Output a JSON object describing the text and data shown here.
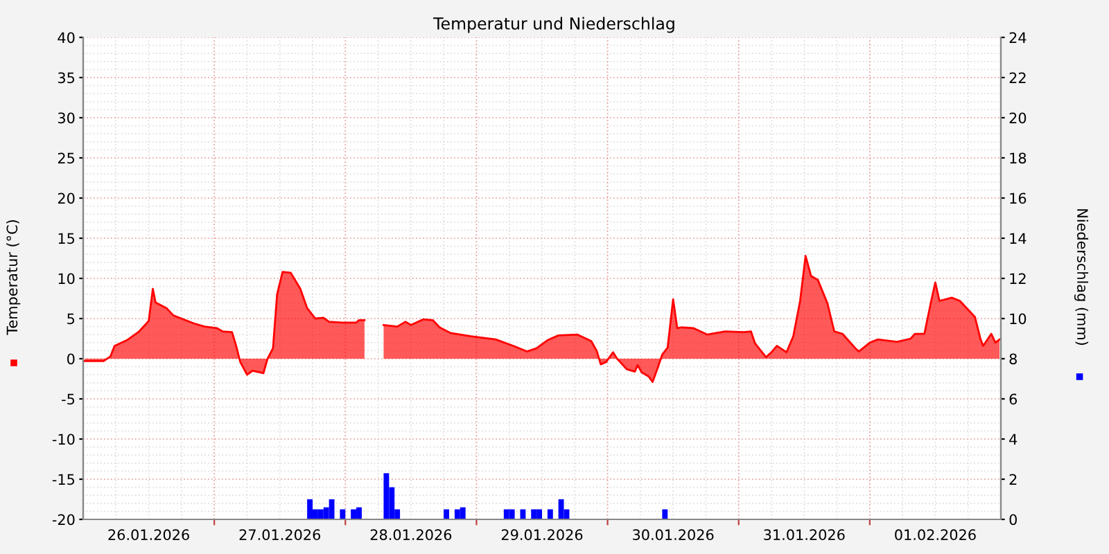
{
  "chart_data": {
    "type": "area",
    "title": "Temperatur und Niederschlag",
    "ylabel": "Temperatur (°C)",
    "y2label": "Niederschlag (mm)",
    "xlim": [
      "2026-01-26T00:00",
      "2026-02-02T00:00"
    ],
    "xticks": [
      {
        "value": "2026-01-26T12:00",
        "label": "26.01.2026"
      },
      {
        "value": "2026-01-27T00:00",
        "label": null
      },
      {
        "value": "2026-01-27T12:00",
        "label": "27.01.2026"
      },
      {
        "value": "2026-01-28T00:00",
        "label": null
      },
      {
        "value": "2026-01-28T12:00",
        "label": "28.01.2026"
      },
      {
        "value": "2026-01-29T00:00",
        "label": null
      },
      {
        "value": "2026-01-29T12:00",
        "label": "29.01.2026"
      },
      {
        "value": "2026-01-30T00:00",
        "label": null
      },
      {
        "value": "2026-01-30T12:00",
        "label": "30.01.2026"
      },
      {
        "value": "2026-01-31T00:00",
        "label": null
      },
      {
        "value": "2026-01-31T12:00",
        "label": "31.01.2026"
      },
      {
        "value": "2026-02-01T00:00",
        "label": null
      },
      {
        "value": "2026-02-01T12:00",
        "label": "01.02.2026"
      }
    ],
    "ylim": [
      -20,
      40
    ],
    "yticks": [
      -20,
      -15,
      -10,
      -5,
      0,
      5,
      10,
      15,
      20,
      25,
      30,
      35,
      40
    ],
    "y2lim": [
      0,
      24
    ],
    "y2ticks": [
      0,
      2,
      4,
      6,
      8,
      10,
      12,
      14,
      16,
      18,
      20,
      22,
      24
    ],
    "grid": true,
    "series": [
      {
        "color": "#ff0000",
        "x": [
          "2026-01-26T00:15",
          "2026-01-26T03:45",
          "2026-01-26T05:00",
          "2026-01-26T05:45",
          "2026-01-26T08:00",
          "2026-01-26T10:15",
          "2026-01-26T12:00",
          "2026-01-26T12:45",
          "2026-01-26T13:15",
          "2026-01-26T15:15",
          "2026-01-26T16:30",
          "2026-01-26T20:15",
          "2026-01-26T22:15",
          "2026-01-27T00:30",
          "2026-01-27T01:30",
          "2026-01-27T03:15",
          "2026-01-27T04:00",
          "2026-01-27T04:45",
          "2026-01-27T06:00",
          "2026-01-27T07:00",
          "2026-01-27T09:00",
          "2026-01-27T09:45",
          "2026-01-27T10:45",
          "2026-01-27T11:30",
          "2026-01-27T12:30",
          "2026-01-27T14:00",
          "2026-01-27T15:45",
          "2026-01-27T17:00",
          "2026-01-27T18:30",
          "2026-01-27T20:00",
          "2026-01-27T21:00",
          "2026-01-27T23:30",
          "2026-01-28T02:00",
          "2026-01-28T02:30",
          "2026-01-28T03:30",
          "2026-01-28T04:30",
          "2026-01-28T07:00",
          "2026-01-28T09:30",
          "2026-01-28T11:00",
          "2026-01-28T12:00",
          "2026-01-28T14:15",
          "2026-01-28T16:00",
          "2026-01-28T17:15",
          "2026-01-28T19:15",
          "2026-01-28T23:00",
          "2026-01-29T03:30",
          "2026-01-29T06:45",
          "2026-01-29T09:15",
          "2026-01-29T11:00",
          "2026-01-29T13:00",
          "2026-01-29T15:00",
          "2026-01-29T18:30",
          "2026-01-29T21:00",
          "2026-01-29T22:00",
          "2026-01-29T22:45",
          "2026-01-29T23:45",
          "2026-01-30T01:00",
          "2026-01-30T01:45",
          "2026-01-30T03:30",
          "2026-01-30T05:00",
          "2026-01-30T05:30",
          "2026-01-30T06:15",
          "2026-01-30T07:30",
          "2026-01-30T08:15",
          "2026-01-30T09:15",
          "2026-01-30T10:00",
          "2026-01-30T11:00",
          "2026-01-30T12:00",
          "2026-01-30T12:45",
          "2026-01-30T13:30",
          "2026-01-30T15:45",
          "2026-01-30T18:15",
          "2026-01-30T21:30",
          "2026-01-31T01:00",
          "2026-01-31T02:15",
          "2026-01-31T03:00",
          "2026-01-31T05:00",
          "2026-01-31T06:00",
          "2026-01-31T07:00",
          "2026-01-31T08:45",
          "2026-01-31T10:00",
          "2026-01-31T11:15",
          "2026-01-31T12:15",
          "2026-01-31T13:15",
          "2026-01-31T14:30",
          "2026-01-31T16:15",
          "2026-01-31T17:30",
          "2026-01-31T19:00",
          "2026-01-31T21:30",
          "2026-01-31T22:00",
          "2026-02-01T00:00",
          "2026-02-01T01:30",
          "2026-02-01T05:00",
          "2026-02-01T07:30",
          "2026-02-01T08:15",
          "2026-02-01T10:00",
          "2026-02-01T11:15",
          "2026-02-01T12:00",
          "2026-02-01T12:45",
          "2026-02-01T15:00",
          "2026-02-01T16:30",
          "2026-02-01T18:00",
          "2026-02-01T19:15",
          "2026-02-01T20:15",
          "2026-02-01T20:45",
          "2026-02-01T22:15",
          "2026-02-01T23:00",
          "2026-02-01T23:45"
        ],
        "values": [
          -0.3,
          -0.3,
          0.3,
          1.6,
          2.3,
          3.4,
          4.7,
          8.7,
          7.0,
          6.3,
          5.4,
          4.4,
          4.0,
          3.8,
          3.4,
          3.3,
          1.6,
          -0.4,
          -2.0,
          -1.5,
          -1.8,
          0,
          1.3,
          8.0,
          10.8,
          10.7,
          8.7,
          6.3,
          5.0,
          5.1,
          4.6,
          4.5,
          4.5,
          4.8,
          4.8,
          null,
          4.2,
          4.0,
          4.6,
          4.2,
          4.9,
          4.8,
          3.9,
          3.2,
          2.8,
          2.4,
          1.6,
          0.9,
          1.3,
          2.3,
          2.9,
          3.0,
          2.2,
          1.0,
          -0.7,
          -0.4,
          0.8,
          0,
          -1.3,
          -1.6,
          -0.8,
          -1.7,
          -2.2,
          -2.9,
          -1.0,
          0.5,
          1.4,
          7.4,
          3.8,
          3.9,
          3.8,
          3.0,
          3.4,
          3.3,
          3.4,
          1.9,
          0.2,
          0.8,
          1.6,
          0.8,
          2.8,
          7.2,
          12.8,
          10.3,
          9.8,
          6.9,
          3.4,
          3.1,
          1.2,
          0.9,
          2.0,
          2.4,
          2.1,
          2.5,
          3.1,
          3.1,
          7.2,
          9.5,
          7.2,
          7.6,
          7.2,
          6.1,
          5.2,
          2.5,
          1.6,
          3.1,
          2.0,
          2.4
        ]
      },
      {
        "type": "bar",
        "axis": "y2",
        "color": "#0000ff",
        "x": [
          "2026-01-27T17:30",
          "2026-01-27T18:30",
          "2026-01-27T19:30",
          "2026-01-27T20:30",
          "2026-01-27T21:30",
          "2026-01-27T23:30",
          "2026-01-28T01:30",
          "2026-01-28T02:30",
          "2026-01-28T07:30",
          "2026-01-28T08:30",
          "2026-01-28T09:30",
          "2026-01-28T18:30",
          "2026-01-28T20:30",
          "2026-01-28T21:30",
          "2026-01-29T05:30",
          "2026-01-29T06:30",
          "2026-01-29T08:30",
          "2026-01-29T10:30",
          "2026-01-29T11:30",
          "2026-01-29T13:30",
          "2026-01-29T15:30",
          "2026-01-29T16:30",
          "2026-01-30T10:30"
        ],
        "values": [
          1.0,
          0.5,
          0.5,
          0.6,
          1.0,
          0.5,
          0.5,
          0.6,
          2.3,
          1.6,
          0.5,
          0.5,
          0.5,
          0.6,
          0.5,
          0.5,
          0.5,
          0.5,
          0.5,
          0.5,
          1.0,
          0.5,
          0.5
        ]
      }
    ]
  }
}
